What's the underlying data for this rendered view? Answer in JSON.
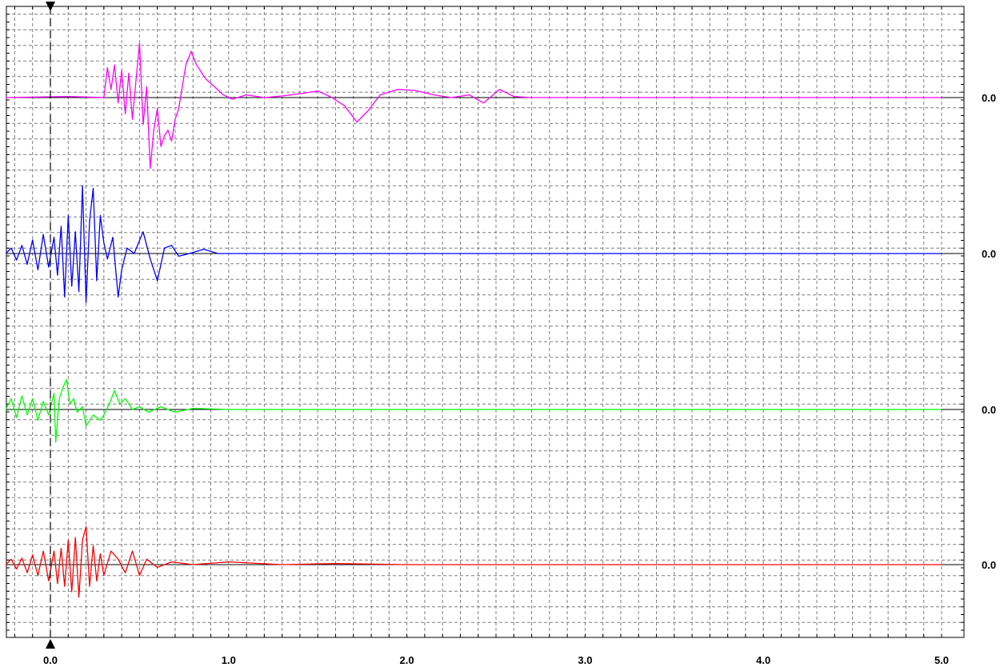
{
  "chart_data": {
    "type": "line",
    "title": "",
    "xlabel": "",
    "ylabel": "",
    "xlim": [
      -0.25,
      5.0
    ],
    "x_ticks": [
      "0.0",
      "1.0",
      "2.0",
      "3.0",
      "4.0",
      "5.0"
    ],
    "grid": true,
    "legend": "none",
    "cursor_x": 0.0,
    "series": [
      {
        "color": "#ff00ff",
        "baseline_label": "0.0",
        "points": [
          [
            -0.25,
            0
          ],
          [
            0.1,
            0.02
          ],
          [
            0.3,
            0
          ],
          [
            0.32,
            0.55
          ],
          [
            0.34,
            0.15
          ],
          [
            0.36,
            0.6
          ],
          [
            0.38,
            -0.1
          ],
          [
            0.4,
            0.5
          ],
          [
            0.42,
            -0.3
          ],
          [
            0.44,
            0.45
          ],
          [
            0.46,
            -0.4
          ],
          [
            0.48,
            0.3
          ],
          [
            0.5,
            1.0
          ],
          [
            0.52,
            -0.5
          ],
          [
            0.54,
            0.2
          ],
          [
            0.56,
            -1.3
          ],
          [
            0.58,
            -0.6
          ],
          [
            0.6,
            -0.2
          ],
          [
            0.62,
            -0.9
          ],
          [
            0.64,
            -0.7
          ],
          [
            0.66,
            -0.6
          ],
          [
            0.68,
            -0.8
          ],
          [
            0.7,
            -0.4
          ],
          [
            0.72,
            -0.2
          ],
          [
            0.76,
            0.6
          ],
          [
            0.79,
            0.85
          ],
          [
            0.82,
            0.6
          ],
          [
            0.87,
            0.35
          ],
          [
            0.92,
            0.2
          ],
          [
            0.97,
            0.05
          ],
          [
            1.02,
            -0.03
          ],
          [
            1.1,
            0.05
          ],
          [
            1.2,
            0.0
          ],
          [
            1.3,
            0.03
          ],
          [
            1.4,
            0.07
          ],
          [
            1.5,
            0.12
          ],
          [
            1.58,
            0.0
          ],
          [
            1.65,
            -0.15
          ],
          [
            1.72,
            -0.45
          ],
          [
            1.78,
            -0.25
          ],
          [
            1.85,
            0.05
          ],
          [
            1.95,
            0.15
          ],
          [
            2.05,
            0.13
          ],
          [
            2.15,
            0.05
          ],
          [
            2.25,
            0.0
          ],
          [
            2.35,
            0.05
          ],
          [
            2.43,
            -0.1
          ],
          [
            2.52,
            0.15
          ],
          [
            2.6,
            0.02
          ],
          [
            2.7,
            0.0
          ],
          [
            3.0,
            0.0
          ],
          [
            4.0,
            0.0
          ],
          [
            5.0,
            0.0
          ]
        ]
      },
      {
        "color": "#0000ff",
        "baseline_label": "0.0",
        "points": [
          [
            -0.25,
            0
          ],
          [
            -0.22,
            0.1
          ],
          [
            -0.19,
            -0.12
          ],
          [
            -0.16,
            0.15
          ],
          [
            -0.13,
            -0.2
          ],
          [
            -0.1,
            0.25
          ],
          [
            -0.07,
            -0.3
          ],
          [
            -0.04,
            0.35
          ],
          [
            -0.01,
            -0.25
          ],
          [
            0.02,
            0.3
          ],
          [
            0.04,
            -0.4
          ],
          [
            0.06,
            0.5
          ],
          [
            0.08,
            -0.8
          ],
          [
            0.1,
            0.7
          ],
          [
            0.12,
            -0.6
          ],
          [
            0.14,
            0.4
          ],
          [
            0.16,
            -0.7
          ],
          [
            0.18,
            1.25
          ],
          [
            0.2,
            -0.9
          ],
          [
            0.22,
            0.6
          ],
          [
            0.24,
            1.2
          ],
          [
            0.26,
            -0.5
          ],
          [
            0.28,
            0.7
          ],
          [
            0.3,
            0.2
          ],
          [
            0.32,
            -0.1
          ],
          [
            0.35,
            0.3
          ],
          [
            0.38,
            -0.8
          ],
          [
            0.4,
            -0.3
          ],
          [
            0.43,
            0.1
          ],
          [
            0.47,
            0.0
          ],
          [
            0.52,
            0.4
          ],
          [
            0.56,
            -0.1
          ],
          [
            0.6,
            -0.5
          ],
          [
            0.64,
            0.1
          ],
          [
            0.68,
            0.15
          ],
          [
            0.72,
            -0.05
          ],
          [
            0.78,
            0.0
          ],
          [
            0.86,
            0.08
          ],
          [
            0.94,
            0.0
          ],
          [
            1.1,
            0.0
          ],
          [
            1.5,
            0.0
          ],
          [
            2.0,
            0.0
          ],
          [
            3.0,
            0.0
          ],
          [
            4.0,
            0.0
          ],
          [
            5.0,
            0.0
          ]
        ]
      },
      {
        "color": "#00ff00",
        "baseline_label": "0.0",
        "points": [
          [
            -0.25,
            0
          ],
          [
            -0.22,
            0.2
          ],
          [
            -0.19,
            -0.15
          ],
          [
            -0.16,
            0.25
          ],
          [
            -0.13,
            -0.1
          ],
          [
            -0.1,
            0.2
          ],
          [
            -0.07,
            -0.2
          ],
          [
            -0.04,
            0.15
          ],
          [
            -0.01,
            -0.1
          ],
          [
            0.02,
            0.3
          ],
          [
            0.03,
            -0.6
          ],
          [
            0.05,
            0.2
          ],
          [
            0.07,
            0.4
          ],
          [
            0.09,
            0.55
          ],
          [
            0.11,
            0.1
          ],
          [
            0.13,
            0.2
          ],
          [
            0.15,
            -0.05
          ],
          [
            0.18,
            0.05
          ],
          [
            0.2,
            -0.3
          ],
          [
            0.24,
            -0.1
          ],
          [
            0.28,
            -0.2
          ],
          [
            0.3,
            -0.1
          ],
          [
            0.33,
            0.1
          ],
          [
            0.36,
            0.35
          ],
          [
            0.39,
            0.1
          ],
          [
            0.42,
            0.2
          ],
          [
            0.46,
            0.0
          ],
          [
            0.5,
            0.05
          ],
          [
            0.55,
            -0.05
          ],
          [
            0.62,
            0.05
          ],
          [
            0.7,
            -0.05
          ],
          [
            0.8,
            0.02
          ],
          [
            1.0,
            0.0
          ],
          [
            2.0,
            0.0
          ],
          [
            3.0,
            0.0
          ],
          [
            4.0,
            0.0
          ],
          [
            5.0,
            0.0
          ]
        ]
      },
      {
        "color": "#ff0000",
        "baseline_label": "0.0",
        "points": [
          [
            -0.25,
            0
          ],
          [
            -0.22,
            0.1
          ],
          [
            -0.19,
            -0.08
          ],
          [
            -0.16,
            0.12
          ],
          [
            -0.13,
            -0.15
          ],
          [
            -0.1,
            0.18
          ],
          [
            -0.07,
            -0.2
          ],
          [
            -0.04,
            0.25
          ],
          [
            -0.01,
            -0.3
          ],
          [
            0.02,
            0.25
          ],
          [
            0.04,
            -0.35
          ],
          [
            0.06,
            0.3
          ],
          [
            0.08,
            -0.4
          ],
          [
            0.1,
            0.45
          ],
          [
            0.12,
            -0.5
          ],
          [
            0.14,
            0.5
          ],
          [
            0.16,
            -0.6
          ],
          [
            0.18,
            0.45
          ],
          [
            0.2,
            0.7
          ],
          [
            0.22,
            -0.4
          ],
          [
            0.24,
            0.35
          ],
          [
            0.26,
            -0.3
          ],
          [
            0.28,
            0.2
          ],
          [
            0.3,
            -0.2
          ],
          [
            0.34,
            0.25
          ],
          [
            0.38,
            0.1
          ],
          [
            0.42,
            -0.15
          ],
          [
            0.46,
            0.25
          ],
          [
            0.5,
            -0.2
          ],
          [
            0.54,
            0.1
          ],
          [
            0.6,
            -0.05
          ],
          [
            0.68,
            0.05
          ],
          [
            0.8,
            0.0
          ],
          [
            1.0,
            0.05
          ],
          [
            1.3,
            0.0
          ],
          [
            1.6,
            0.02
          ],
          [
            2.0,
            0.0
          ],
          [
            3.0,
            0.0
          ],
          [
            4.0,
            0.0
          ],
          [
            5.0,
            0.0
          ]
        ]
      }
    ]
  }
}
